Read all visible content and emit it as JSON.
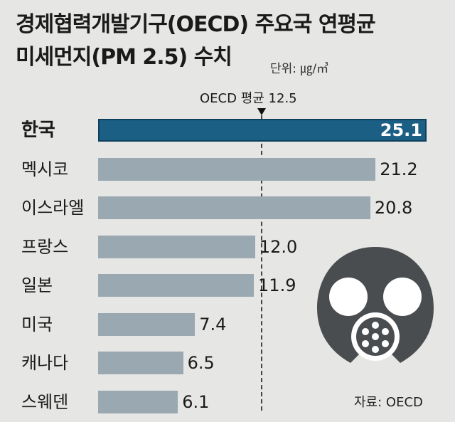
{
  "title_line1": "경제협력개발기구(OECD) 주요국 연평균",
  "title_line2": "미세먼지(PM 2.5) 수치",
  "unit": "단위: ㎍/㎥",
  "average": {
    "label": "OECD 평균",
    "value": "12.5"
  },
  "source": "자료: OECD",
  "mask_icon": "gas-mask-icon",
  "colors": {
    "bar": "#9aa8b2",
    "highlight": "#1c5f85",
    "background": "#e6e6e4"
  },
  "chart_data": {
    "type": "bar",
    "orientation": "horizontal",
    "categories": [
      "한국",
      "멕시코",
      "이스라엘",
      "프랑스",
      "일본",
      "미국",
      "캐나다",
      "스웨덴"
    ],
    "values": [
      25.1,
      21.2,
      20.8,
      12.0,
      11.9,
      7.4,
      6.5,
      6.1
    ],
    "value_labels": [
      "25.1",
      "21.2",
      "20.8",
      "12.0",
      "11.9",
      "7.4",
      "6.5",
      "6.1"
    ],
    "highlight": "한국",
    "reference_line": 12.5,
    "xlim": [
      0,
      25.1
    ],
    "grid": false,
    "legend": "none"
  }
}
